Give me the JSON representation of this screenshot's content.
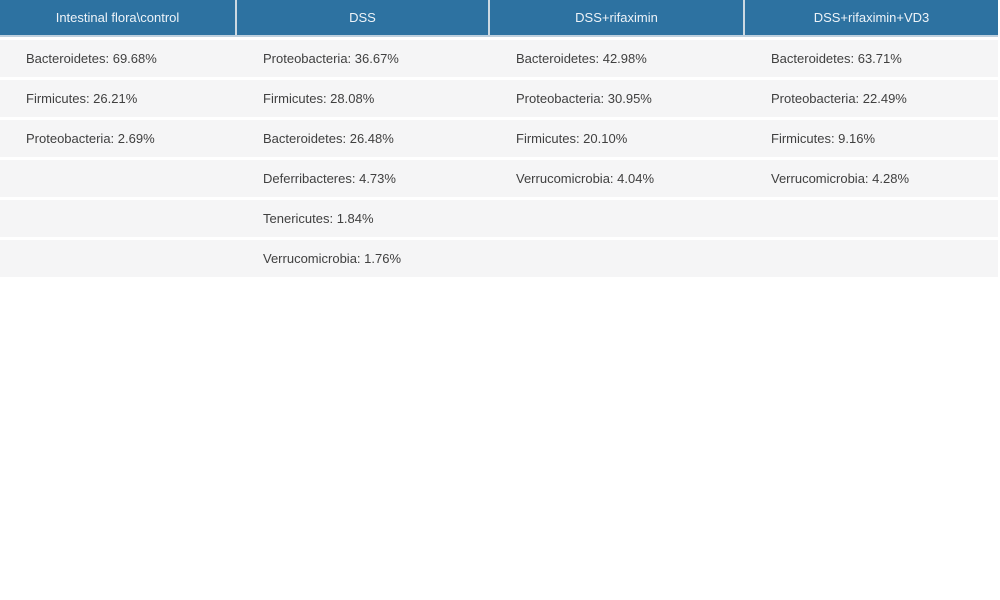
{
  "accent_color": "#2d72a1",
  "row_stripe_color": "#f5f5f6",
  "table": {
    "headers": [
      "Intestinal flora\\control",
      "DSS",
      "DSS+rifaximin",
      "DSS+rifaximin+VD3"
    ],
    "rows": [
      [
        "Bacteroidetes: 69.68%",
        "Proteobacteria: 36.67%",
        "Bacteroidetes: 42.98%",
        "Bacteroidetes: 63.71%"
      ],
      [
        "Firmicutes: 26.21%",
        "Firmicutes: 28.08%",
        "Proteobacteria: 30.95%",
        "Proteobacteria: 22.49%"
      ],
      [
        "Proteobacteria: 2.69%",
        "Bacteroidetes: 26.48%",
        "Firmicutes: 20.10%",
        "Firmicutes: 9.16%"
      ],
      [
        "",
        "Deferribacteres: 4.73%",
        "Verrucomicrobia: 4.04%",
        "Verrucomicrobia: 4.28%"
      ],
      [
        "",
        "Tenericutes: 1.84%",
        "",
        ""
      ],
      [
        "",
        "Verrucomicrobia: 1.76%",
        "",
        ""
      ]
    ]
  },
  "chart_data": {
    "type": "table",
    "title": "",
    "columns": [
      "Intestinal flora\\control",
      "DSS",
      "DSS+rifaximin",
      "DSS+rifaximin+VD3"
    ],
    "groups": [
      {
        "group": "Intestinal flora\\control",
        "composition": [
          {
            "taxon": "Bacteroidetes",
            "percent": 69.68
          },
          {
            "taxon": "Firmicutes",
            "percent": 26.21
          },
          {
            "taxon": "Proteobacteria",
            "percent": 2.69
          }
        ]
      },
      {
        "group": "DSS",
        "composition": [
          {
            "taxon": "Proteobacteria",
            "percent": 36.67
          },
          {
            "taxon": "Firmicutes",
            "percent": 28.08
          },
          {
            "taxon": "Bacteroidetes",
            "percent": 26.48
          },
          {
            "taxon": "Deferribacteres",
            "percent": 4.73
          },
          {
            "taxon": "Tenericutes",
            "percent": 1.84
          },
          {
            "taxon": "Verrucomicrobia",
            "percent": 1.76
          }
        ]
      },
      {
        "group": "DSS+rifaximin",
        "composition": [
          {
            "taxon": "Bacteroidetes",
            "percent": 42.98
          },
          {
            "taxon": "Proteobacteria",
            "percent": 30.95
          },
          {
            "taxon": "Firmicutes",
            "percent": 20.1
          },
          {
            "taxon": "Verrucomicrobia",
            "percent": 4.04
          }
        ]
      },
      {
        "group": "DSS+rifaximin+VD3",
        "composition": [
          {
            "taxon": "Bacteroidetes",
            "percent": 63.71
          },
          {
            "taxon": "Proteobacteria",
            "percent": 22.49
          },
          {
            "taxon": "Firmicutes",
            "percent": 9.16
          },
          {
            "taxon": "Verrucomicrobia",
            "percent": 4.28
          }
        ]
      }
    ]
  }
}
